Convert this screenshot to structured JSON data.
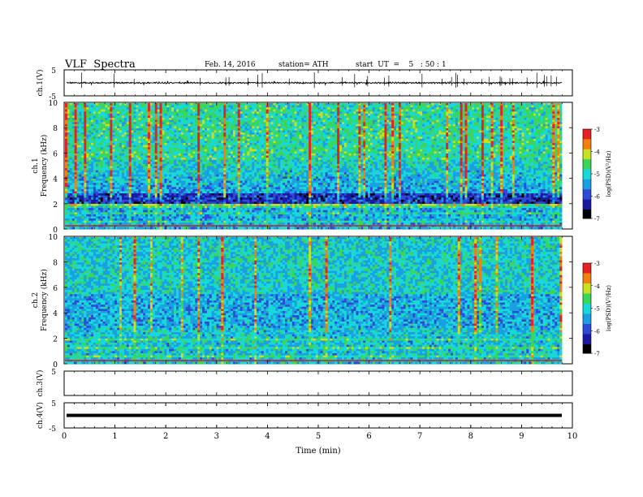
{
  "header": {
    "title": "VLF  Spectra",
    "date": "Feb. 14, 2016",
    "station": "station= ATH",
    "start": "start  UT  =    5   : 50 : 1"
  },
  "chart_data": [
    {
      "type": "line",
      "ylabel": "ch.1(V)",
      "ylim": [
        -5,
        5
      ],
      "yticks": [
        "5",
        "-5"
      ],
      "description_series": "waveform",
      "baseline": 0,
      "xlim": [
        0,
        10
      ]
    },
    {
      "type": "heatmap",
      "ylabel_line1": "ch.1",
      "ylabel_line2": "Frequency  (kHz)",
      "ylim": [
        0,
        10
      ],
      "yticks": [
        "0",
        "2",
        "4",
        "6",
        "8",
        "10"
      ],
      "xlim": [
        0,
        9.8
      ],
      "colorbar": {
        "label": "log(PSD)(V²/Hz)",
        "range": [
          -7,
          -3
        ],
        "ticks": [
          "-3",
          "-4",
          "-5",
          "-6",
          "-7"
        ]
      }
    },
    {
      "type": "heatmap",
      "ylabel_line1": "ch.2",
      "ylabel_line2": "Frequency  (kHz)",
      "ylim": [
        0,
        10
      ],
      "yticks": [
        "0",
        "2",
        "4",
        "6",
        "8",
        "10"
      ],
      "xlim": [
        0,
        9.8
      ],
      "colorbar": {
        "label": "log(PSD)(V²/Hz)",
        "range": [
          -7,
          -3
        ],
        "ticks": [
          "-3",
          "-4",
          "-5",
          "-6",
          "-7"
        ]
      }
    },
    {
      "type": "line",
      "ylabel": "ch.3(V)",
      "ylim": [
        -5,
        5
      ],
      "yticks": [
        "5"
      ],
      "baseline": 5,
      "xlim": [
        0,
        10
      ]
    },
    {
      "type": "line",
      "ylabel": "ch.4(V)",
      "ylim": [
        -5,
        5
      ],
      "yticks": [
        "5",
        "-5"
      ],
      "baseline": 0,
      "xlim": [
        0,
        10
      ],
      "xlabel": "Time  (min)",
      "xticks": [
        "0",
        "1",
        "2",
        "3",
        "4",
        "5",
        "6",
        "7",
        "8",
        "9",
        "10"
      ]
    }
  ],
  "colors": {
    "colormap": [
      "#000000",
      "#1a1aa0",
      "#2e4ad8",
      "#1aa0e0",
      "#18d8d8",
      "#3ad65a",
      "#c8e020",
      "#f08010",
      "#e82020",
      "#ffffff"
    ]
  }
}
